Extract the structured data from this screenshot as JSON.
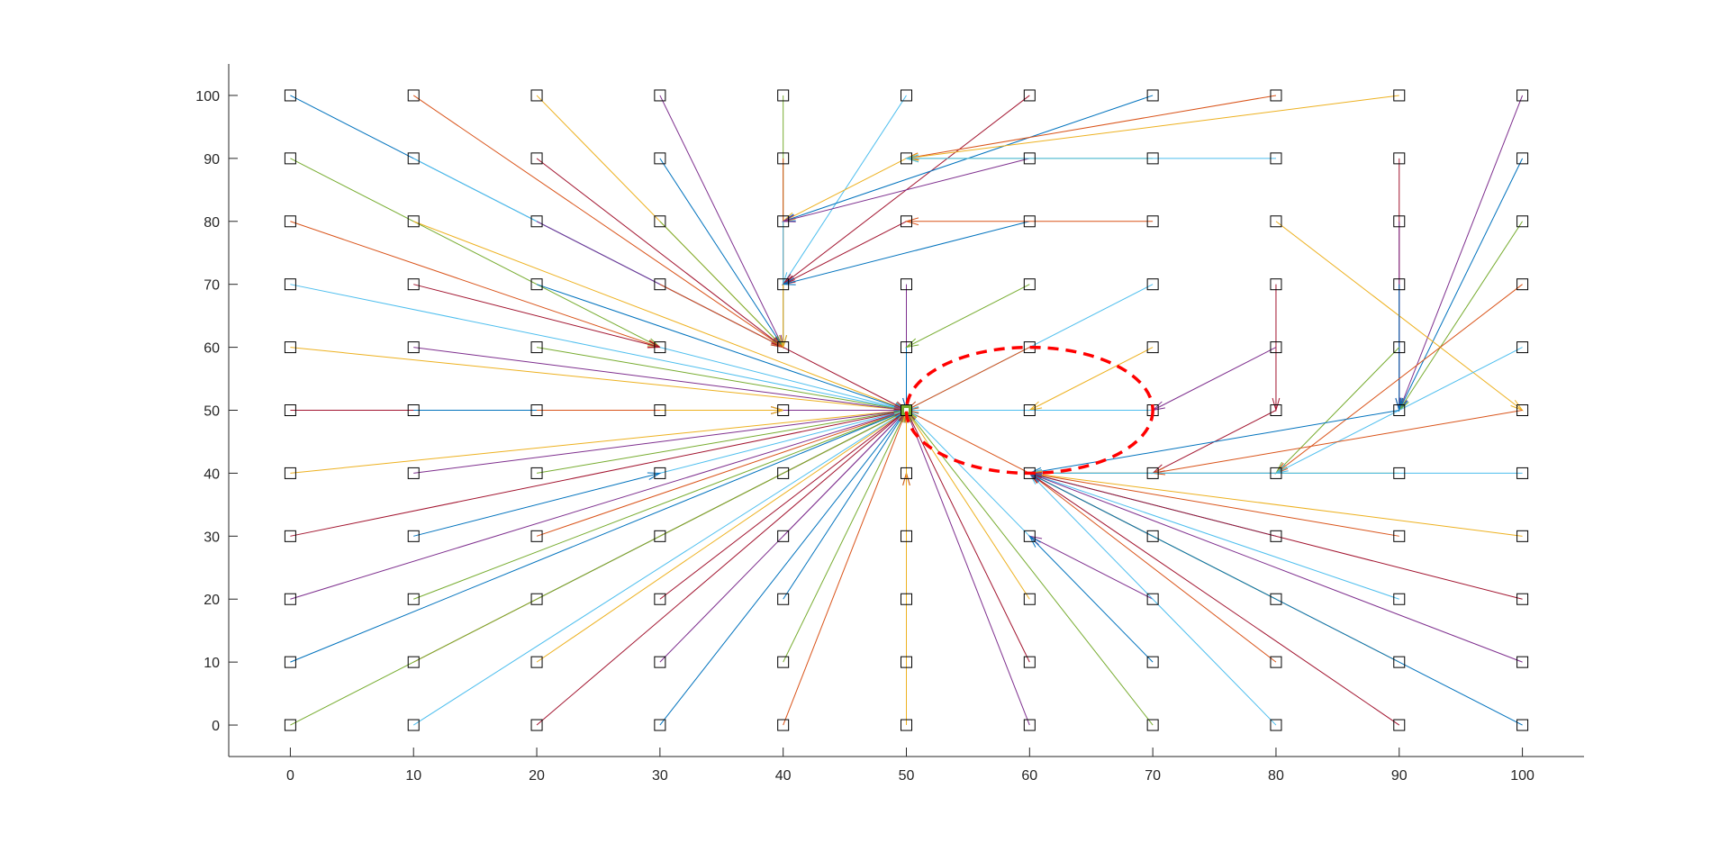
{
  "chart_data": {
    "type": "scatter",
    "title": "",
    "xlabel": "",
    "ylabel": "",
    "xlim": [
      -5,
      105
    ],
    "ylim": [
      -5,
      105
    ],
    "x_ticks": [
      "0",
      "10",
      "20",
      "30",
      "40",
      "50",
      "60",
      "70",
      "80",
      "90",
      "100"
    ],
    "y_ticks": [
      "0",
      "10",
      "20",
      "30",
      "40",
      "50",
      "60",
      "70",
      "80",
      "90",
      "100"
    ],
    "grid": false,
    "nodes_x": [
      0,
      10,
      20,
      30,
      40,
      50,
      60,
      70,
      80,
      90,
      100
    ],
    "nodes_y": [
      0,
      10,
      20,
      30,
      40,
      50,
      60,
      70,
      80,
      90,
      100
    ],
    "series_colors": [
      "#0072BD",
      "#D95319",
      "#EDB120",
      "#7E2F8E",
      "#77AC30",
      "#4DBEEE",
      "#A2142F"
    ],
    "sink": [
      50,
      50
    ],
    "ellipse": {
      "center": [
        60,
        50
      ],
      "radius_x": 10,
      "radius_y": 10,
      "color": "#ff0000",
      "style": "dashed"
    },
    "edges": [
      [
        0,
        100,
        40,
        60
      ],
      [
        10,
        100,
        40,
        60
      ],
      [
        20,
        100,
        40,
        60
      ],
      [
        30,
        100,
        40,
        60
      ],
      [
        40,
        100,
        40,
        60
      ],
      [
        50,
        100,
        40,
        70
      ],
      [
        60,
        100,
        40,
        70
      ],
      [
        70,
        100,
        40,
        80
      ],
      [
        80,
        100,
        50,
        90
      ],
      [
        90,
        100,
        50,
        90
      ],
      [
        100,
        100,
        90,
        50
      ],
      [
        0,
        90,
        30,
        60
      ],
      [
        10,
        90,
        40,
        60
      ],
      [
        20,
        90,
        40,
        60
      ],
      [
        30,
        90,
        40,
        60
      ],
      [
        40,
        90,
        40,
        60
      ],
      [
        50,
        90,
        40,
        80
      ],
      [
        60,
        90,
        40,
        80
      ],
      [
        70,
        90,
        50,
        90
      ],
      [
        80,
        90,
        50,
        90
      ],
      [
        90,
        90,
        90,
        50
      ],
      [
        100,
        90,
        90,
        50
      ],
      [
        0,
        80,
        30,
        60
      ],
      [
        10,
        80,
        50,
        50
      ],
      [
        20,
        80,
        40,
        60
      ],
      [
        30,
        80,
        40,
        60
      ],
      [
        40,
        80,
        40,
        60
      ],
      [
        50,
        80,
        40,
        70
      ],
      [
        60,
        80,
        40,
        70
      ],
      [
        70,
        80,
        50,
        80
      ],
      [
        80,
        80,
        100,
        50
      ],
      [
        90,
        80,
        90,
        50
      ],
      [
        100,
        80,
        90,
        50
      ],
      [
        0,
        70,
        50,
        50
      ],
      [
        10,
        70,
        30,
        60
      ],
      [
        20,
        70,
        50,
        50
      ],
      [
        30,
        70,
        40,
        60
      ],
      [
        40,
        70,
        40,
        60
      ],
      [
        50,
        70,
        50,
        50
      ],
      [
        60,
        70,
        50,
        60
      ],
      [
        70,
        70,
        50,
        50
      ],
      [
        80,
        70,
        80,
        50
      ],
      [
        90,
        70,
        90,
        50
      ],
      [
        100,
        70,
        80,
        40
      ],
      [
        0,
        60,
        50,
        50
      ],
      [
        10,
        60,
        50,
        50
      ],
      [
        20,
        60,
        50,
        50
      ],
      [
        30,
        60,
        50,
        50
      ],
      [
        40,
        60,
        50,
        50
      ],
      [
        50,
        60,
        50,
        50
      ],
      [
        60,
        60,
        50,
        50
      ],
      [
        70,
        60,
        60,
        50
      ],
      [
        80,
        60,
        70,
        50
      ],
      [
        90,
        60,
        80,
        40
      ],
      [
        100,
        60,
        80,
        40
      ],
      [
        0,
        50,
        40,
        50
      ],
      [
        10,
        50,
        40,
        50
      ],
      [
        20,
        50,
        40,
        50
      ],
      [
        30,
        50,
        40,
        50
      ],
      [
        40,
        50,
        50,
        50
      ],
      [
        60,
        50,
        50,
        50
      ],
      [
        70,
        50,
        50,
        50
      ],
      [
        80,
        50,
        70,
        40
      ],
      [
        90,
        50,
        60,
        40
      ],
      [
        100,
        50,
        70,
        40
      ],
      [
        0,
        40,
        50,
        50
      ],
      [
        10,
        40,
        50,
        50
      ],
      [
        20,
        40,
        50,
        50
      ],
      [
        30,
        40,
        50,
        50
      ],
      [
        40,
        40,
        50,
        50
      ],
      [
        50,
        40,
        50,
        50
      ],
      [
        60,
        40,
        50,
        50
      ],
      [
        70,
        40,
        60,
        40
      ],
      [
        80,
        40,
        60,
        40
      ],
      [
        90,
        40,
        60,
        40
      ],
      [
        100,
        40,
        60,
        40
      ],
      [
        0,
        30,
        50,
        50
      ],
      [
        10,
        30,
        30,
        40
      ],
      [
        20,
        30,
        50,
        50
      ],
      [
        30,
        30,
        50,
        50
      ],
      [
        40,
        30,
        50,
        50
      ],
      [
        50,
        30,
        50,
        40
      ],
      [
        60,
        30,
        50,
        50
      ],
      [
        70,
        30,
        60,
        40
      ],
      [
        80,
        30,
        60,
        40
      ],
      [
        90,
        30,
        60,
        40
      ],
      [
        100,
        30,
        60,
        40
      ],
      [
        0,
        20,
        50,
        50
      ],
      [
        10,
        20,
        50,
        50
      ],
      [
        20,
        20,
        50,
        50
      ],
      [
        30,
        20,
        50,
        50
      ],
      [
        40,
        20,
        50,
        50
      ],
      [
        50,
        20,
        50,
        40
      ],
      [
        60,
        20,
        50,
        50
      ],
      [
        70,
        20,
        60,
        30
      ],
      [
        80,
        20,
        60,
        40
      ],
      [
        90,
        20,
        60,
        40
      ],
      [
        100,
        20,
        60,
        40
      ],
      [
        0,
        10,
        50,
        50
      ],
      [
        10,
        10,
        50,
        50
      ],
      [
        20,
        10,
        50,
        50
      ],
      [
        30,
        10,
        50,
        50
      ],
      [
        40,
        10,
        50,
        50
      ],
      [
        50,
        10,
        50,
        50
      ],
      [
        60,
        10,
        50,
        50
      ],
      [
        70,
        10,
        60,
        30
      ],
      [
        80,
        10,
        60,
        40
      ],
      [
        90,
        10,
        60,
        40
      ],
      [
        100,
        10,
        60,
        40
      ],
      [
        0,
        0,
        50,
        50
      ],
      [
        10,
        0,
        50,
        50
      ],
      [
        20,
        0,
        50,
        50
      ],
      [
        30,
        0,
        50,
        50
      ],
      [
        40,
        0,
        50,
        50
      ],
      [
        50,
        0,
        50,
        50
      ],
      [
        60,
        0,
        50,
        50
      ],
      [
        70,
        0,
        50,
        50
      ],
      [
        80,
        0,
        60,
        40
      ],
      [
        90,
        0,
        60,
        40
      ],
      [
        100,
        0,
        60,
        40
      ]
    ]
  }
}
